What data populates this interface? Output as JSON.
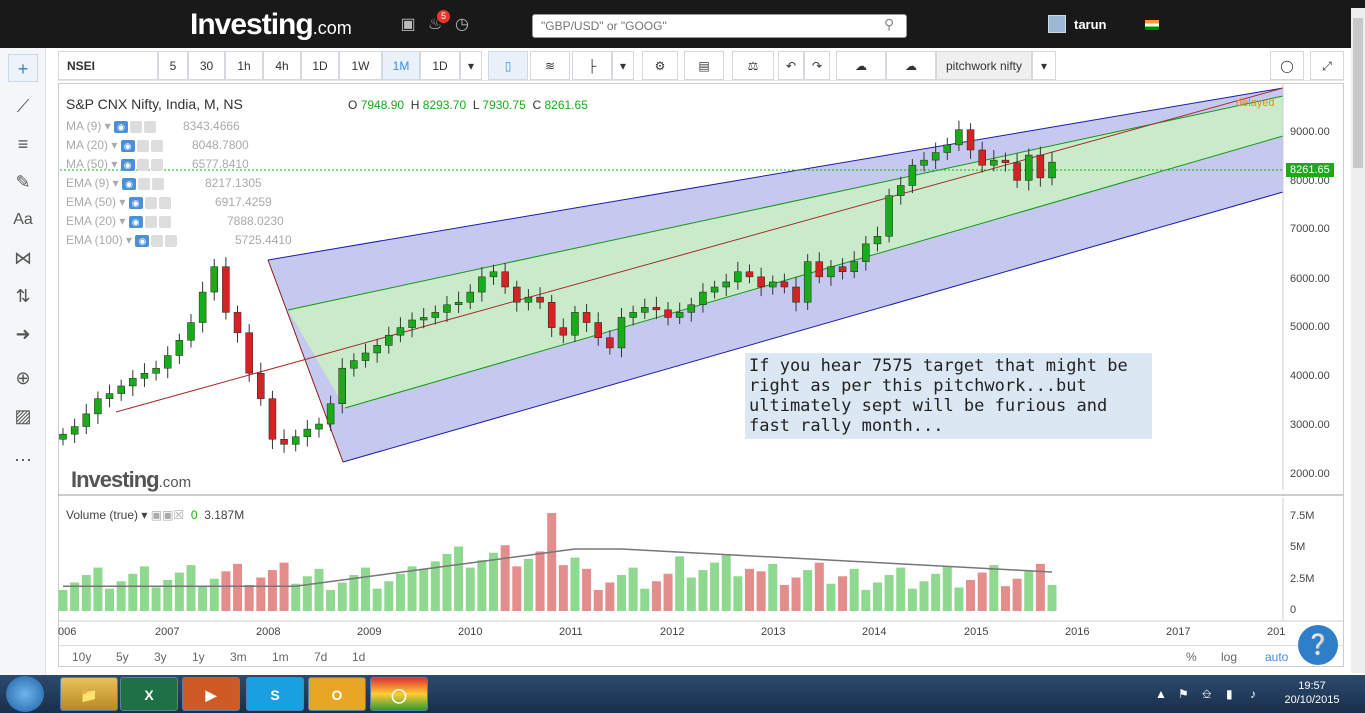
{
  "header": {
    "logo": "Investing",
    "logo_suffix": ".com",
    "notif_count": "5",
    "search_placeholder": "\"GBP/USD\" or \"GOOG\"",
    "user": "tarun"
  },
  "toolbar": {
    "symbol": "NSEI",
    "intervals": [
      "5",
      "30",
      "1h",
      "4h",
      "1D",
      "1W",
      "1M",
      "1D"
    ],
    "selected": "1M",
    "template": "pitchwork nifty"
  },
  "chart": {
    "title": "S&P CNX Nifty, India, M, NS",
    "ohlc": {
      "o_label": "O",
      "o": "7948.90",
      "h_label": "H",
      "h": "8293.70",
      "l_label": "L",
      "l": "7930.75",
      "c_label": "C",
      "c": "8261.65"
    },
    "delayed": "delayed",
    "last_price": "8261.65",
    "watermark": "Investing",
    "watermark_suffix": ".com"
  },
  "indicators": [
    {
      "name": "MA (9)",
      "value": "8343.4666"
    },
    {
      "name": "MA (20)",
      "value": "8048.7800"
    },
    {
      "name": "MA (50)",
      "value": "6577.8410"
    },
    {
      "name": "EMA (9)",
      "value": "8217.1305"
    },
    {
      "name": "EMA (50)",
      "value": "6917.4259"
    },
    {
      "name": "EMA (20)",
      "value": "7888.0230"
    },
    {
      "name": "EMA (100)",
      "value": "5725.4410"
    }
  ],
  "price_axis": [
    "9000.00",
    "8000.00",
    "7000.00",
    "6000.00",
    "5000.00",
    "4000.00",
    "3000.00",
    "2000.00"
  ],
  "note": "If you hear 7575 target that might be right as per this pitchwork...but ultimately sept will be furious and fast rally month...",
  "volume": {
    "label": "Volume (true)",
    "zero": "0",
    "value": "3.187M",
    "axis": [
      "7.5M",
      "5M",
      "2.5M",
      "0"
    ]
  },
  "time_axis": [
    "006",
    "2007",
    "2008",
    "2009",
    "2010",
    "2011",
    "2012",
    "2013",
    "2014",
    "2015",
    "2016",
    "2017",
    "201"
  ],
  "ranges": [
    "10y",
    "5y",
    "3y",
    "1y",
    "3m",
    "1m",
    "7d",
    "1d"
  ],
  "scale_opts": [
    "%",
    "log",
    "auto"
  ],
  "taskbar": {
    "time": "19:57",
    "date": "20/10/2015"
  },
  "colors": {
    "up": "#19ab19",
    "down": "#d42323",
    "pitch_outer": "#b8bde8",
    "pitch_inner": "#c9ecc4"
  },
  "chart_data": {
    "type": "candlestick",
    "title": "S&P CNX Nifty, India, M, NS",
    "ylim": [
      2000,
      9400
    ],
    "xlabels": [
      "006",
      "2007",
      "2008",
      "2009",
      "2010",
      "2011",
      "2012",
      "2013",
      "2014",
      "2015",
      "2016",
      "2017",
      "201"
    ],
    "closes": [
      2900,
      3050,
      3300,
      3600,
      3700,
      3850,
      4000,
      4100,
      4200,
      4450,
      4750,
      5100,
      5700,
      6200,
      5300,
      4900,
      4100,
      3600,
      2800,
      2700,
      2850,
      3000,
      3100,
      3500,
      4200,
      4350,
      4500,
      4650,
      4850,
      5000,
      5150,
      5200,
      5300,
      5450,
      5500,
      5700,
      6000,
      6100,
      5800,
      5500,
      5600,
      5500,
      5000,
      4850,
      5300,
      5100,
      4800,
      4600,
      5200,
      5300,
      5400,
      5350,
      5200,
      5300,
      5450,
      5700,
      5800,
      5900,
      6100,
      6000,
      5800,
      5900,
      5800,
      5500,
      6300,
      6000,
      6200,
      6100,
      6300,
      6650,
      6800,
      7600,
      7800,
      8200,
      8300,
      8450,
      8600,
      8900,
      8500,
      8200,
      8300,
      8250,
      7900,
      8400,
      7950,
      8260
    ]
  }
}
